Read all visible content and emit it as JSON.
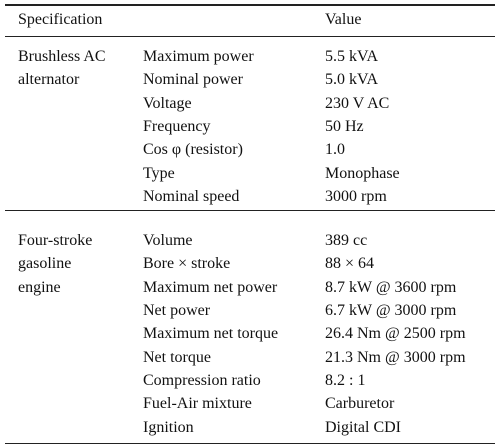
{
  "table": {
    "header": [
      "Specification",
      "Value"
    ],
    "groups": [
      {
        "label": [
          "Brushless AC",
          "alternator"
        ],
        "rows": [
          [
            "Maximum power",
            "5.5 kVA"
          ],
          [
            "Nominal power",
            "5.0 kVA"
          ],
          [
            "Voltage",
            "230 V AC"
          ],
          [
            "Frequency",
            "50 Hz"
          ],
          [
            "Cos φ (resistor)",
            "1.0"
          ],
          [
            "Type",
            "Monophase"
          ],
          [
            "Nominal speed",
            "3000 rpm"
          ]
        ]
      },
      {
        "label": [
          "Four-stroke",
          "gasoline",
          "engine"
        ],
        "rows": [
          [
            "Volume",
            "389 cc"
          ],
          [
            "Bore × stroke",
            "88 × 64"
          ],
          [
            "Maximum net power",
            "8.7 kW @ 3600 rpm"
          ],
          [
            "Net power",
            "6.7 kW @ 3000 rpm"
          ],
          [
            "Maximum net torque",
            "26.4 Nm @ 2500 rpm"
          ],
          [
            "Net torque",
            "21.3 Nm @ 3000 rpm"
          ],
          [
            "Compression ratio",
            "8.2 : 1"
          ],
          [
            "Fuel-Air mixture",
            "Carburetor"
          ],
          [
            "Ignition",
            "Digital CDI"
          ]
        ]
      }
    ]
  }
}
